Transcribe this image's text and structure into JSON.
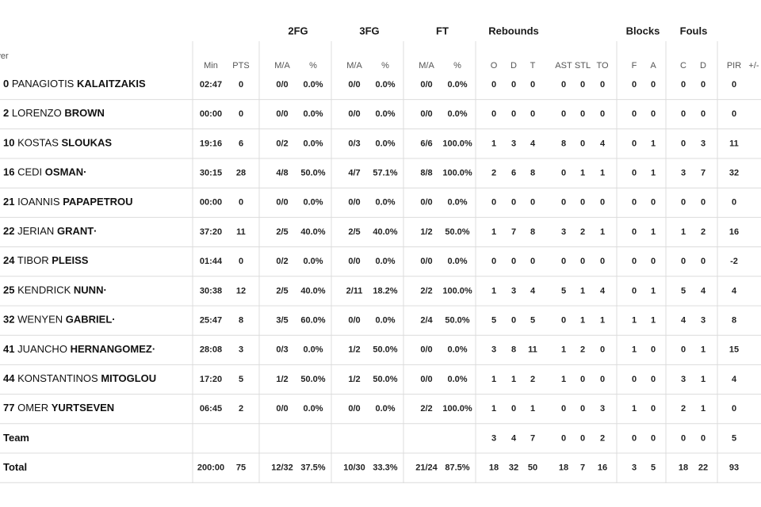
{
  "table": {
    "groups": [
      "2FG",
      "3FG",
      "FT",
      "Rebounds",
      "Blocks",
      "Fouls"
    ],
    "columns": [
      "ayer",
      "Min",
      "PTS",
      "M/A",
      "%",
      "M/A",
      "%",
      "M/A",
      "%",
      "O",
      "D",
      "T",
      "AST",
      "STL",
      "TO",
      "F",
      "A",
      "C",
      "D",
      "PIR",
      "+/-"
    ],
    "rows": [
      {
        "number": 0,
        "first": "PANAGIOTIS",
        "last": "KALAITZAKIS",
        "cells": [
          "02:47",
          0,
          "0/0",
          "0.0%",
          "0/0",
          "0.0%",
          "0/0",
          "0.0%",
          0,
          0,
          0,
          0,
          0,
          0,
          0,
          0,
          0,
          0,
          0,
          null
        ]
      },
      {
        "number": 2,
        "first": "LORENZO",
        "last": "BROWN",
        "cells": [
          "00:00",
          0,
          "0/0",
          "0.0%",
          "0/0",
          "0.0%",
          "0/0",
          "0.0%",
          0,
          0,
          0,
          0,
          0,
          0,
          0,
          0,
          0,
          0,
          0,
          null
        ]
      },
      {
        "number": 10,
        "first": "KOSTAS",
        "last": "SLOUKAS",
        "cells": [
          "19:16",
          6,
          "0/2",
          "0.0%",
          "0/3",
          "0.0%",
          "6/6",
          "100.0%",
          1,
          3,
          4,
          8,
          0,
          4,
          0,
          1,
          0,
          3,
          11,
          null
        ]
      },
      {
        "number": 16,
        "first": "CEDI",
        "last": "OSMAN·",
        "cells": [
          "30:15",
          28,
          "4/8",
          "50.0%",
          "4/7",
          "57.1%",
          "8/8",
          "100.0%",
          2,
          6,
          8,
          0,
          1,
          1,
          0,
          1,
          3,
          7,
          32,
          null
        ]
      },
      {
        "number": 21,
        "first": "IOANNIS",
        "last": "PAPAPETROU",
        "cells": [
          "00:00",
          0,
          "0/0",
          "0.0%",
          "0/0",
          "0.0%",
          "0/0",
          "0.0%",
          0,
          0,
          0,
          0,
          0,
          0,
          0,
          0,
          0,
          0,
          0,
          null
        ]
      },
      {
        "number": 22,
        "first": "JERIAN",
        "last": "GRANT·",
        "cells": [
          "37:20",
          11,
          "2/5",
          "40.0%",
          "2/5",
          "40.0%",
          "1/2",
          "50.0%",
          1,
          7,
          8,
          3,
          2,
          1,
          0,
          1,
          1,
          2,
          16,
          null
        ]
      },
      {
        "number": 24,
        "first": "TIBOR",
        "last": "PLEISS",
        "cells": [
          "01:44",
          0,
          "0/2",
          "0.0%",
          "0/0",
          "0.0%",
          "0/0",
          "0.0%",
          0,
          0,
          0,
          0,
          0,
          0,
          0,
          0,
          0,
          0,
          -2,
          null
        ]
      },
      {
        "number": 25,
        "first": "KENDRICK",
        "last": "NUNN·",
        "cells": [
          "30:38",
          12,
          "2/5",
          "40.0%",
          "2/11",
          "18.2%",
          "2/2",
          "100.0%",
          1,
          3,
          4,
          5,
          1,
          4,
          0,
          1,
          5,
          4,
          4,
          null
        ]
      },
      {
        "number": 32,
        "first": "WENYEN",
        "last": "GABRIEL·",
        "cells": [
          "25:47",
          8,
          "3/5",
          "60.0%",
          "0/0",
          "0.0%",
          "2/4",
          "50.0%",
          5,
          0,
          5,
          0,
          1,
          1,
          1,
          1,
          4,
          3,
          8,
          null
        ]
      },
      {
        "number": 41,
        "first": "JUANCHO",
        "last": "HERNANGOMEZ·",
        "cells": [
          "28:08",
          3,
          "0/3",
          "0.0%",
          "1/2",
          "50.0%",
          "0/0",
          "0.0%",
          3,
          8,
          11,
          1,
          2,
          0,
          1,
          0,
          0,
          1,
          15,
          null
        ]
      },
      {
        "number": 44,
        "first": "KONSTANTINOS",
        "last": "MITOGLOU",
        "cells": [
          "17:20",
          5,
          "1/2",
          "50.0%",
          "1/2",
          "50.0%",
          "0/0",
          "0.0%",
          1,
          1,
          2,
          1,
          0,
          0,
          0,
          0,
          3,
          1,
          4,
          null
        ]
      },
      {
        "number": 77,
        "first": "OMER",
        "last": "YURTSEVEN",
        "cells": [
          "06:45",
          2,
          "0/0",
          "0.0%",
          "0/0",
          "0.0%",
          "2/2",
          "100.0%",
          1,
          0,
          1,
          0,
          0,
          3,
          1,
          0,
          2,
          1,
          0,
          null
        ]
      },
      {
        "label": "Team",
        "cells": [
          null,
          null,
          null,
          null,
          null,
          null,
          null,
          null,
          3,
          4,
          7,
          0,
          0,
          2,
          0,
          0,
          0,
          0,
          5,
          null
        ]
      },
      {
        "label": "Total",
        "cells": [
          "200:00",
          75,
          "12/32",
          "37.5%",
          "10/30",
          "33.3%",
          "21/24",
          "87.5%",
          18,
          32,
          50,
          18,
          7,
          16,
          3,
          5,
          18,
          22,
          93,
          null
        ]
      }
    ]
  }
}
